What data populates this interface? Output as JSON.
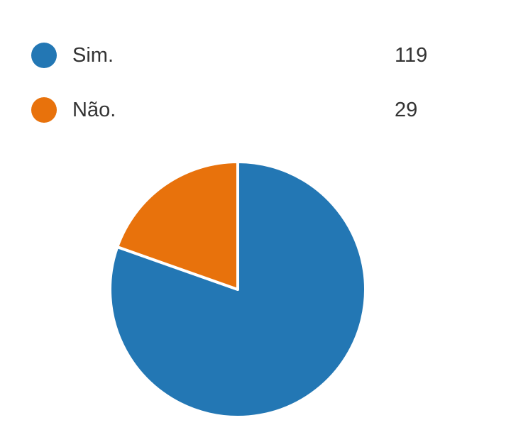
{
  "chart_data": {
    "type": "pie",
    "categories": [
      "Sim.",
      "Não."
    ],
    "values": [
      119,
      29
    ],
    "colors": [
      "#2377b4",
      "#e8720c"
    ],
    "legend_position": "top-left"
  }
}
